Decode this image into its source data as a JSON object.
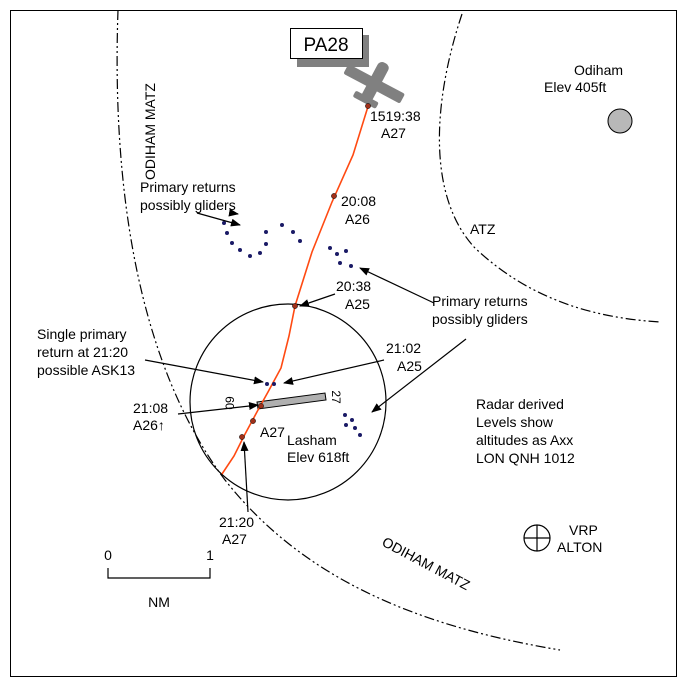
{
  "aircraft": {
    "label": "PA28"
  },
  "airfields": {
    "odiham": {
      "name": "Odiham",
      "elev": "Elev 405ft"
    },
    "lasham": {
      "name": "Lasham",
      "elev": "Elev 618ft"
    }
  },
  "runway": {
    "end_west": "09",
    "end_east": "27"
  },
  "airspace": {
    "matz_west": "ODIHAM MATZ",
    "matz_south": "ODIHAM MATZ",
    "atz": "ATZ"
  },
  "track_points": [
    {
      "time": "1519:38",
      "level": "A27"
    },
    {
      "time": "20:08",
      "level": "A26"
    },
    {
      "time": "20:38",
      "level": "A25"
    },
    {
      "time": "21:02",
      "level": "A25"
    },
    {
      "time": "21:08",
      "level": "A26↑"
    },
    {
      "time": "21:20",
      "level": "A27"
    }
  ],
  "annotations": {
    "primary_returns_left": [
      "Primary returns",
      "possibly gliders"
    ],
    "primary_returns_right": [
      "Primary returns",
      "possibly gliders"
    ],
    "single_primary": [
      "Single primary",
      "return at 21:20",
      "possible ASK13"
    ],
    "lasham_a27": "A27",
    "radar_note": [
      "Radar derived",
      "Levels show",
      "altitudes as Axx",
      "LON QNH 1012"
    ]
  },
  "vrp": {
    "line1": "VRP",
    "line2": "ALTON"
  },
  "scale": {
    "start": "0",
    "end": "1",
    "unit": "NM"
  },
  "colors": {
    "track": "#ff4a12",
    "aircraft": "#808080",
    "returns": "#1a1a66"
  }
}
